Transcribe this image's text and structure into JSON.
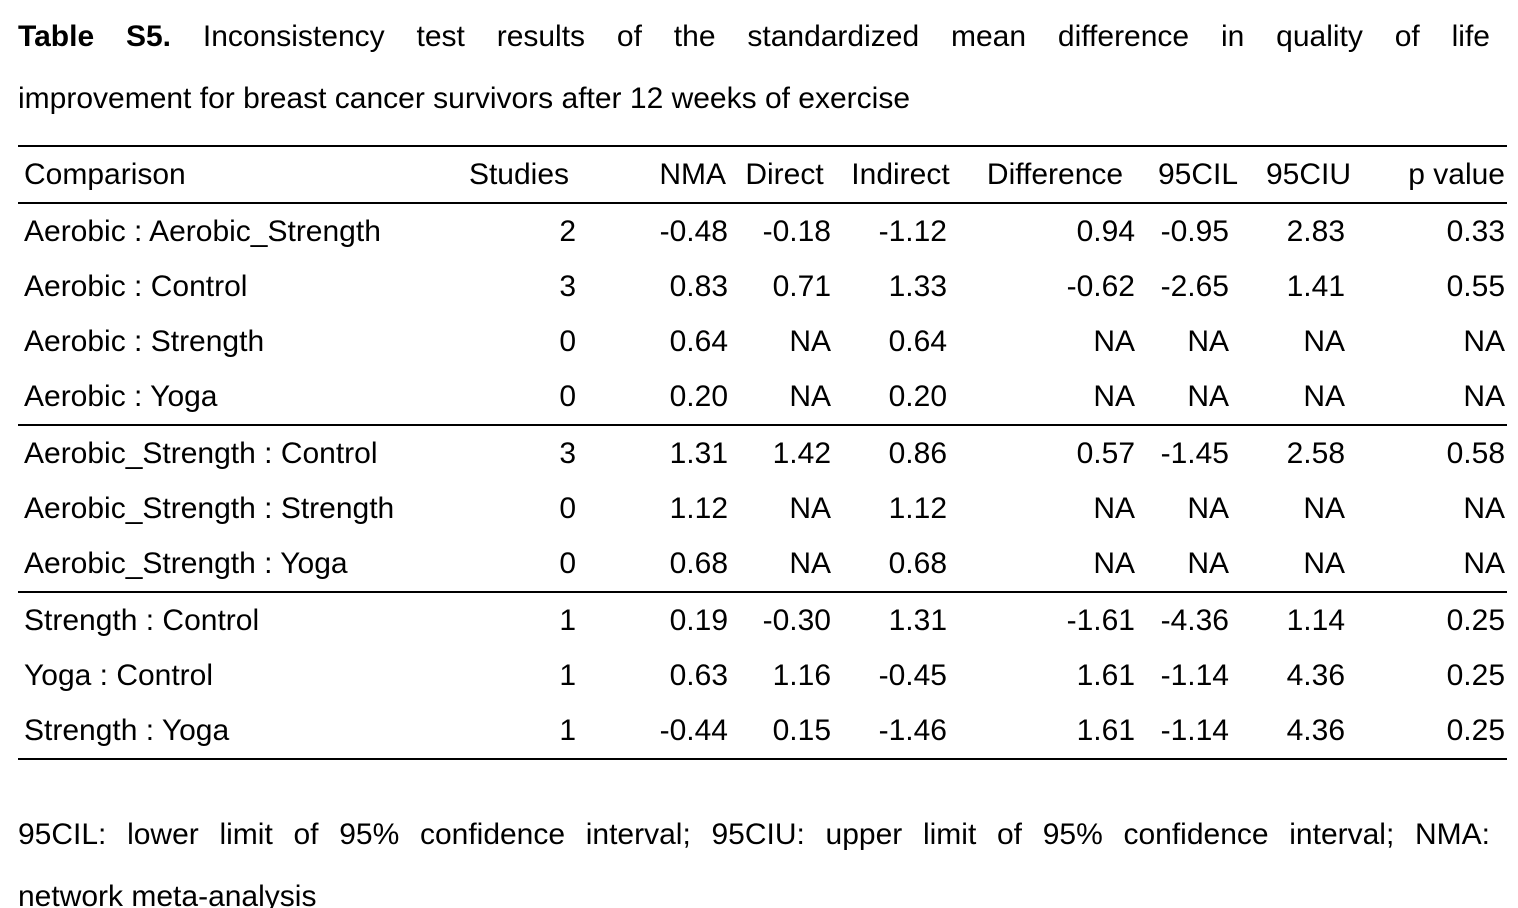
{
  "page": {
    "background_color": "#ffffff",
    "text_color": "#000000"
  },
  "caption": {
    "label": "Table S5.",
    "line1_rest": "Inconsistency test results of the standardized mean difference in quality of life",
    "line2": "improvement for breast cancer survivors after 12 weeks of exercise"
  },
  "table": {
    "columns": [
      {
        "key": "comparison",
        "label": "Comparison"
      },
      {
        "key": "studies",
        "label": "Studies"
      },
      {
        "key": "nma",
        "label": "NMA"
      },
      {
        "key": "direct",
        "label": "Direct"
      },
      {
        "key": "indirect",
        "label": "Indirect"
      },
      {
        "key": "difference",
        "label": "Difference"
      },
      {
        "key": "cil95",
        "label": "95CIL"
      },
      {
        "key": "ciu95",
        "label": "95CIU"
      },
      {
        "key": "pvalue",
        "label": "p value"
      }
    ],
    "groups": [
      {
        "rows": [
          {
            "comparison": "Aerobic : Aerobic_Strength",
            "studies": "2",
            "nma": "-0.48",
            "direct": "-0.18",
            "indirect": "-1.12",
            "difference": "0.94",
            "cil95": "-0.95",
            "ciu95": "2.83",
            "pvalue": "0.33"
          },
          {
            "comparison": "Aerobic : Control",
            "studies": "3",
            "nma": "0.83",
            "direct": "0.71",
            "indirect": "1.33",
            "difference": "-0.62",
            "cil95": "-2.65",
            "ciu95": "1.41",
            "pvalue": "0.55"
          },
          {
            "comparison": "Aerobic : Strength",
            "studies": "0",
            "nma": "0.64",
            "direct": "NA",
            "indirect": "0.64",
            "difference": "NA",
            "cil95": "NA",
            "ciu95": "NA",
            "pvalue": "NA"
          },
          {
            "comparison": "Aerobic : Yoga",
            "studies": "0",
            "nma": "0.20",
            "direct": "NA",
            "indirect": "0.20",
            "difference": "NA",
            "cil95": "NA",
            "ciu95": "NA",
            "pvalue": "NA"
          }
        ]
      },
      {
        "rows": [
          {
            "comparison": "Aerobic_Strength : Control",
            "studies": "3",
            "nma": "1.31",
            "direct": "1.42",
            "indirect": "0.86",
            "difference": "0.57",
            "cil95": "-1.45",
            "ciu95": "2.58",
            "pvalue": "0.58"
          },
          {
            "comparison": "Aerobic_Strength : Strength",
            "studies": "0",
            "nma": "1.12",
            "direct": "NA",
            "indirect": "1.12",
            "difference": "NA",
            "cil95": "NA",
            "ciu95": "NA",
            "pvalue": "NA"
          },
          {
            "comparison": "Aerobic_Strength : Yoga",
            "studies": "0",
            "nma": "0.68",
            "direct": "NA",
            "indirect": "0.68",
            "difference": "NA",
            "cil95": "NA",
            "ciu95": "NA",
            "pvalue": "NA"
          }
        ]
      },
      {
        "rows": [
          {
            "comparison": "Strength : Control",
            "studies": "1",
            "nma": "0.19",
            "direct": "-0.30",
            "indirect": "1.31",
            "difference": "-1.61",
            "cil95": "-4.36",
            "ciu95": "1.14",
            "pvalue": "0.25"
          },
          {
            "comparison": "Yoga : Control",
            "studies": "1",
            "nma": "0.63",
            "direct": "1.16",
            "indirect": "-0.45",
            "difference": "1.61",
            "cil95": "-1.14",
            "ciu95": "4.36",
            "pvalue": "0.25"
          },
          {
            "comparison": "Strength : Yoga",
            "studies": "1",
            "nma": "-0.44",
            "direct": "0.15",
            "indirect": "-1.46",
            "difference": "1.61",
            "cil95": "-1.14",
            "ciu95": "4.36",
            "pvalue": "0.25"
          }
        ]
      }
    ]
  },
  "footnote": {
    "line1": "95CIL: lower limit of 95% confidence interval; 95CIU: upper limit of 95% confidence interval; NMA:",
    "line2": "network meta-analysis"
  }
}
